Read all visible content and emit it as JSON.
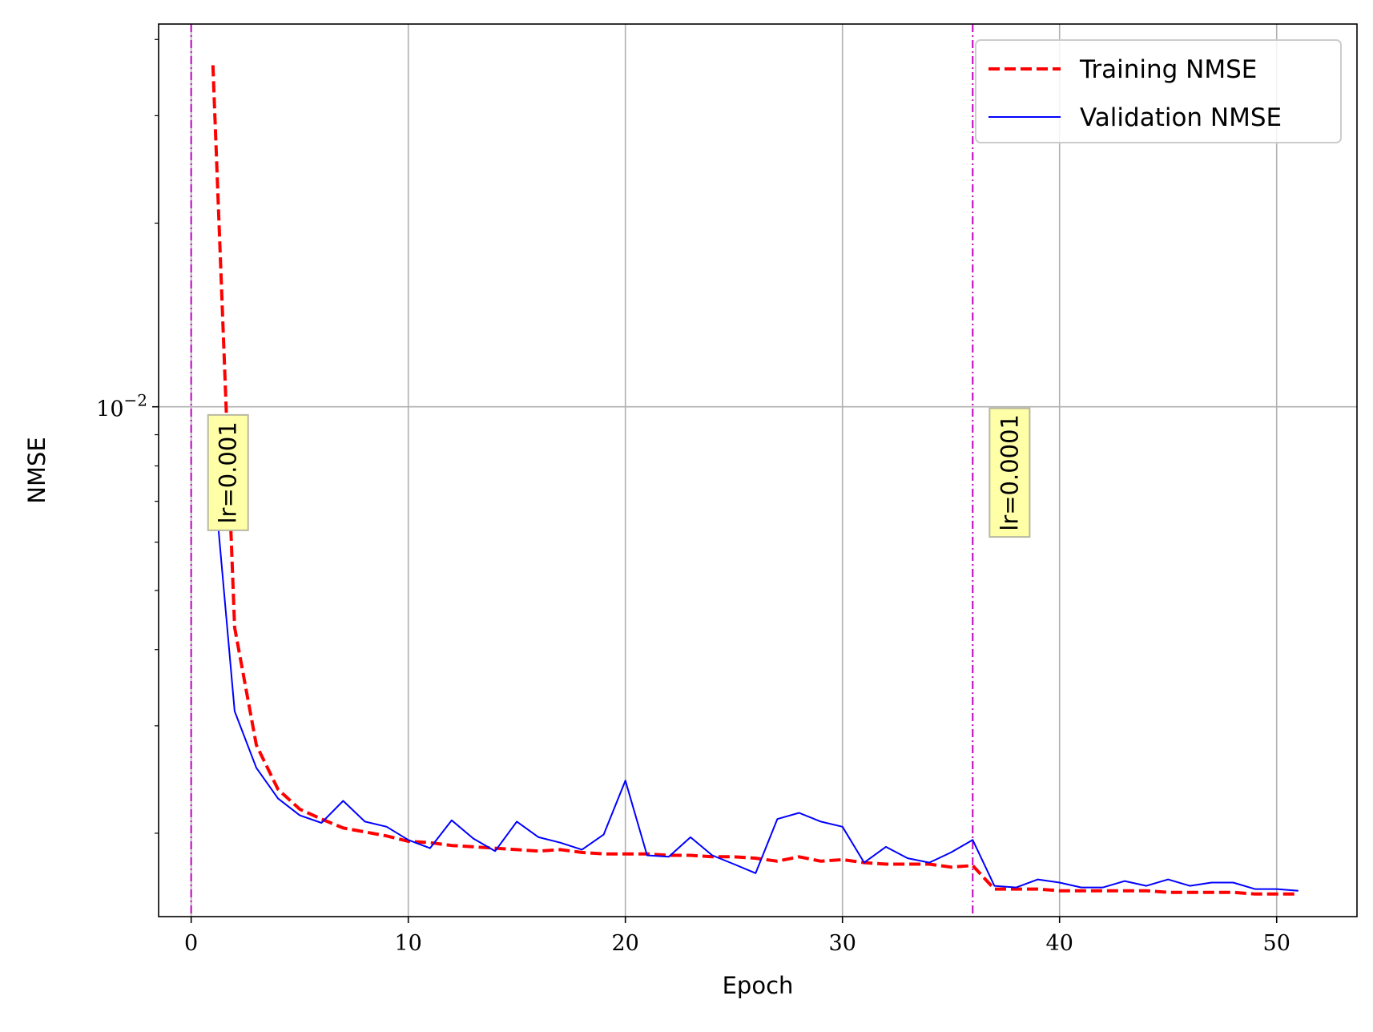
{
  "chart_data": {
    "type": "line",
    "title": "",
    "xlabel": "Epoch",
    "ylabel": "NMSE",
    "yscale": "log",
    "xlim": [
      -1.5,
      53.7
    ],
    "ylim": [
      0.00146,
      0.0424
    ],
    "xticks": [
      0,
      10,
      20,
      30,
      40,
      50
    ],
    "xtick_labels": [
      "0",
      "10",
      "20",
      "30",
      "40",
      "50"
    ],
    "yticks": [
      0.01
    ],
    "ytick_labels": [
      {
        "base": "10",
        "exp": "−2"
      }
    ],
    "grid": true,
    "legend": {
      "position": "top-right"
    },
    "series": [
      {
        "name": "Training NMSE",
        "color": "#ff0000",
        "style": "dashed",
        "x": [
          1,
          2,
          3,
          4,
          5,
          6,
          7,
          8,
          9,
          10,
          11,
          12,
          13,
          14,
          15,
          16,
          17,
          18,
          19,
          20,
          21,
          22,
          23,
          24,
          25,
          26,
          27,
          28,
          29,
          30,
          31,
          32,
          33,
          34,
          35,
          36,
          37,
          38,
          39,
          40,
          41,
          42,
          43,
          44,
          45,
          46,
          47,
          48,
          49,
          50,
          51
        ],
        "values": [
          0.0363,
          0.00435,
          0.00279,
          0.00236,
          0.00219,
          0.00211,
          0.00204,
          0.00201,
          0.00198,
          0.00194,
          0.00193,
          0.00191,
          0.0019,
          0.00189,
          0.00188,
          0.00187,
          0.00188,
          0.00186,
          0.00185,
          0.00185,
          0.00185,
          0.00184,
          0.00184,
          0.00183,
          0.00183,
          0.00182,
          0.0018,
          0.00183,
          0.0018,
          0.00181,
          0.00179,
          0.00178,
          0.00178,
          0.00178,
          0.00176,
          0.00177,
          0.00162,
          0.00162,
          0.00162,
          0.00161,
          0.00161,
          0.00161,
          0.00161,
          0.00161,
          0.0016,
          0.0016,
          0.0016,
          0.0016,
          0.00159,
          0.00159,
          0.00159
        ]
      },
      {
        "name": "Validation NMSE",
        "color": "#0000ff",
        "style": "solid",
        "x": [
          1,
          2,
          3,
          4,
          5,
          6,
          7,
          8,
          9,
          10,
          11,
          12,
          13,
          14,
          15,
          16,
          17,
          18,
          19,
          20,
          21,
          22,
          23,
          24,
          25,
          26,
          27,
          28,
          29,
          30,
          31,
          32,
          33,
          34,
          35,
          36,
          37,
          38,
          39,
          40,
          41,
          42,
          43,
          44,
          45,
          46,
          47,
          48,
          49,
          50,
          51
        ],
        "values": [
          0.00798,
          0.00317,
          0.00256,
          0.00228,
          0.00214,
          0.00208,
          0.00226,
          0.00209,
          0.00205,
          0.00195,
          0.00189,
          0.0021,
          0.00196,
          0.00187,
          0.00209,
          0.00197,
          0.00193,
          0.00188,
          0.00199,
          0.00244,
          0.00184,
          0.00183,
          0.00197,
          0.00184,
          0.00178,
          0.00172,
          0.00211,
          0.00216,
          0.00209,
          0.00205,
          0.00179,
          0.0019,
          0.00182,
          0.00179,
          0.00186,
          0.00195,
          0.00164,
          0.00163,
          0.00168,
          0.00166,
          0.00163,
          0.00163,
          0.00167,
          0.00164,
          0.00168,
          0.00164,
          0.00166,
          0.00166,
          0.00162,
          0.00162,
          0.00161
        ]
      }
    ],
    "vlines": [
      {
        "x": 0,
        "label": "lr=0.001",
        "label_y": 0.0078,
        "label_x_offset": 1.7
      },
      {
        "x": 36,
        "label": "lr=0.0001",
        "label_y": 0.0078,
        "label_x_offset": 1.7
      }
    ],
    "vline_color": "#c000c0",
    "annotation_fill": "#ffffa8"
  }
}
